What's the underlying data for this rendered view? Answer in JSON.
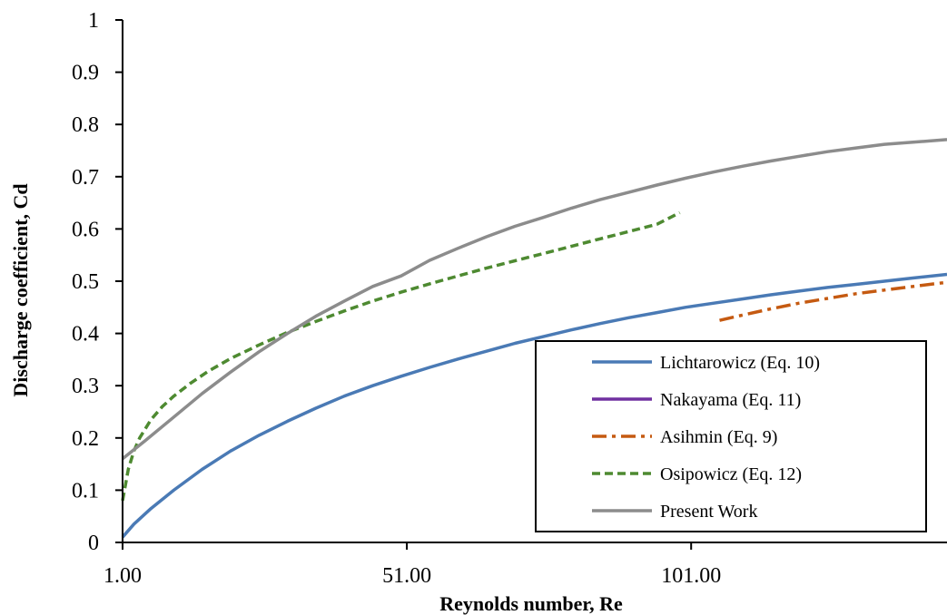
{
  "chart_data": {
    "type": "line",
    "xlabel": "Reynolds number, Re",
    "ylabel": "Discharge coefficient, Cd",
    "xlim": [
      1,
      146
    ],
    "ylim": [
      0,
      1
    ],
    "x_ticks": [
      1,
      51,
      101
    ],
    "x_tick_labels": [
      "1.00",
      "51.00",
      "101.00"
    ],
    "y_ticks": [
      0,
      0.1,
      0.2,
      0.3,
      0.4,
      0.5,
      0.6,
      0.7,
      0.8,
      0.9,
      1
    ],
    "y_tick_labels": [
      "0",
      "0.1",
      "0.2",
      "0.3",
      "0.4",
      "0.5",
      "0.6",
      "0.7",
      "0.8",
      "0.9",
      "1"
    ],
    "grid": false,
    "legend_position": "bottom-right",
    "series": [
      {
        "name": "Lichtarowicz (Eq. 10)",
        "color": "#4a7ab5",
        "dash": "solid",
        "x": [
          1,
          3,
          6,
          10,
          15,
          20,
          25,
          30,
          35,
          40,
          45,
          50,
          55,
          60,
          65,
          70,
          75,
          80,
          85,
          90,
          95,
          100,
          105,
          110,
          115,
          120,
          125,
          130,
          135,
          140,
          146
        ],
        "y": [
          0.01,
          0.035,
          0.065,
          0.1,
          0.14,
          0.175,
          0.205,
          0.232,
          0.257,
          0.28,
          0.3,
          0.318,
          0.335,
          0.351,
          0.366,
          0.381,
          0.394,
          0.407,
          0.419,
          0.43,
          0.44,
          0.45,
          0.458,
          0.466,
          0.474,
          0.481,
          0.488,
          0.494,
          0.5,
          0.506,
          0.513
        ]
      },
      {
        "name": "Nakayama (Eq. 11)",
        "color": "#7030a0",
        "dash": "solid",
        "x": [],
        "y": []
      },
      {
        "name": "Asihmin (Eq. 9)",
        "color": "#c55a11",
        "dash": "dashdot",
        "x": [
          106,
          110,
          115,
          120,
          125,
          130,
          135,
          140,
          146
        ],
        "y": [
          0.425,
          0.435,
          0.447,
          0.458,
          0.467,
          0.476,
          0.483,
          0.49,
          0.498
        ]
      },
      {
        "name": "Osipowicz (Eq. 12)",
        "color": "#4e8a31",
        "dash": "dashed",
        "x": [
          1,
          2,
          3,
          4,
          6,
          8,
          10,
          13,
          16,
          20,
          25,
          30,
          35,
          40,
          45,
          50,
          55,
          60,
          65,
          70,
          75,
          80,
          85,
          90,
          95,
          99
        ],
        "y": [
          0.08,
          0.14,
          0.175,
          0.2,
          0.235,
          0.26,
          0.28,
          0.305,
          0.327,
          0.352,
          0.378,
          0.402,
          0.423,
          0.443,
          0.462,
          0.479,
          0.495,
          0.51,
          0.525,
          0.539,
          0.553,
          0.567,
          0.581,
          0.595,
          0.609,
          0.631
        ]
      },
      {
        "name": "Present Work",
        "color": "#8c8c8c",
        "dash": "solid",
        "x": [
          1,
          5,
          10,
          15,
          20,
          25,
          30,
          35,
          40,
          45,
          50,
          55,
          60,
          65,
          70,
          75,
          80,
          85,
          90,
          95,
          100,
          105,
          110,
          115,
          120,
          125,
          130,
          135,
          140,
          146
        ],
        "y": [
          0.16,
          0.195,
          0.24,
          0.285,
          0.326,
          0.365,
          0.4,
          0.433,
          0.462,
          0.49,
          0.51,
          0.54,
          0.563,
          0.585,
          0.605,
          0.622,
          0.64,
          0.656,
          0.67,
          0.684,
          0.697,
          0.709,
          0.72,
          0.73,
          0.739,
          0.748,
          0.755,
          0.762,
          0.766,
          0.771
        ]
      }
    ]
  }
}
